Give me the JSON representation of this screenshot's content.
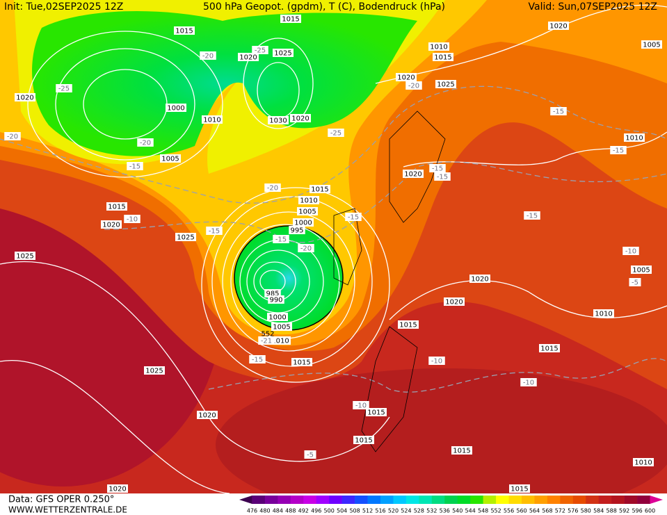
{
  "header": {
    "init": "Init: Tue,02SEP2025 12Z",
    "title": "500 hPa Geopot. (gpdm), T (C), Bodendruck (hPa)",
    "valid": "Valid: Sun,07SEP2025 12Z"
  },
  "footer": {
    "source": "Data: GFS OPER 0.250°",
    "site": "WWW.WETTERZENTRALE.DE"
  },
  "pressure_labels": [
    "1015",
    "1015",
    "1025",
    "1020",
    "1010",
    "1015",
    "1020",
    "1005",
    "1020",
    "1000",
    "1010",
    "1030",
    "1020",
    "1020",
    "1025",
    "1005",
    "1010",
    "1020",
    "1015",
    "1010",
    "1005",
    "1000",
    "995",
    "1015",
    "1020",
    "1025",
    "1025",
    "1005",
    "1020",
    "1020",
    "985",
    "990",
    "1000",
    "1005",
    "1010",
    "1010",
    "1015",
    "1015",
    "1015",
    "1025",
    "1020",
    "1015",
    "1015",
    "1015",
    "1010",
    "1020",
    "1015"
  ],
  "temperature_labels": [
    "-25",
    "-20",
    "-25",
    "-20",
    "-15",
    "-20",
    "-20",
    "-15",
    "-25",
    "-15",
    "-15",
    "-15",
    "-20",
    "-15",
    "-15",
    "-10",
    "-15",
    "-15",
    "-20",
    "-10",
    "-5",
    "-21",
    "-15",
    "-10",
    "-10",
    "-10",
    "-5"
  ],
  "height_labels": [
    "552"
  ],
  "colorbar": {
    "labels": [
      476,
      480,
      484,
      488,
      492,
      496,
      500,
      504,
      508,
      512,
      516,
      520,
      524,
      528,
      532,
      536,
      540,
      544,
      548,
      552,
      556,
      560,
      564,
      568,
      572,
      576,
      580,
      584,
      588,
      592,
      596,
      600
    ],
    "colors": [
      "#3c0050",
      "#5a0078",
      "#78009b",
      "#9600b4",
      "#b400c8",
      "#c800e6",
      "#a000ff",
      "#6e00ff",
      "#3c28ff",
      "#1450ff",
      "#0078ff",
      "#00a0ff",
      "#00c8ff",
      "#00e6e6",
      "#00e6b4",
      "#00dc82",
      "#00d250",
      "#00dc28",
      "#28e600",
      "#b4f000",
      "#ffff00",
      "#ffdc00",
      "#ffbe00",
      "#ffa000",
      "#ff8200",
      "#f06400",
      "#e64b00",
      "#d23214",
      "#c31e1e",
      "#b4141e",
      "#a00a28",
      "#91003c",
      "#dc0096"
    ]
  }
}
